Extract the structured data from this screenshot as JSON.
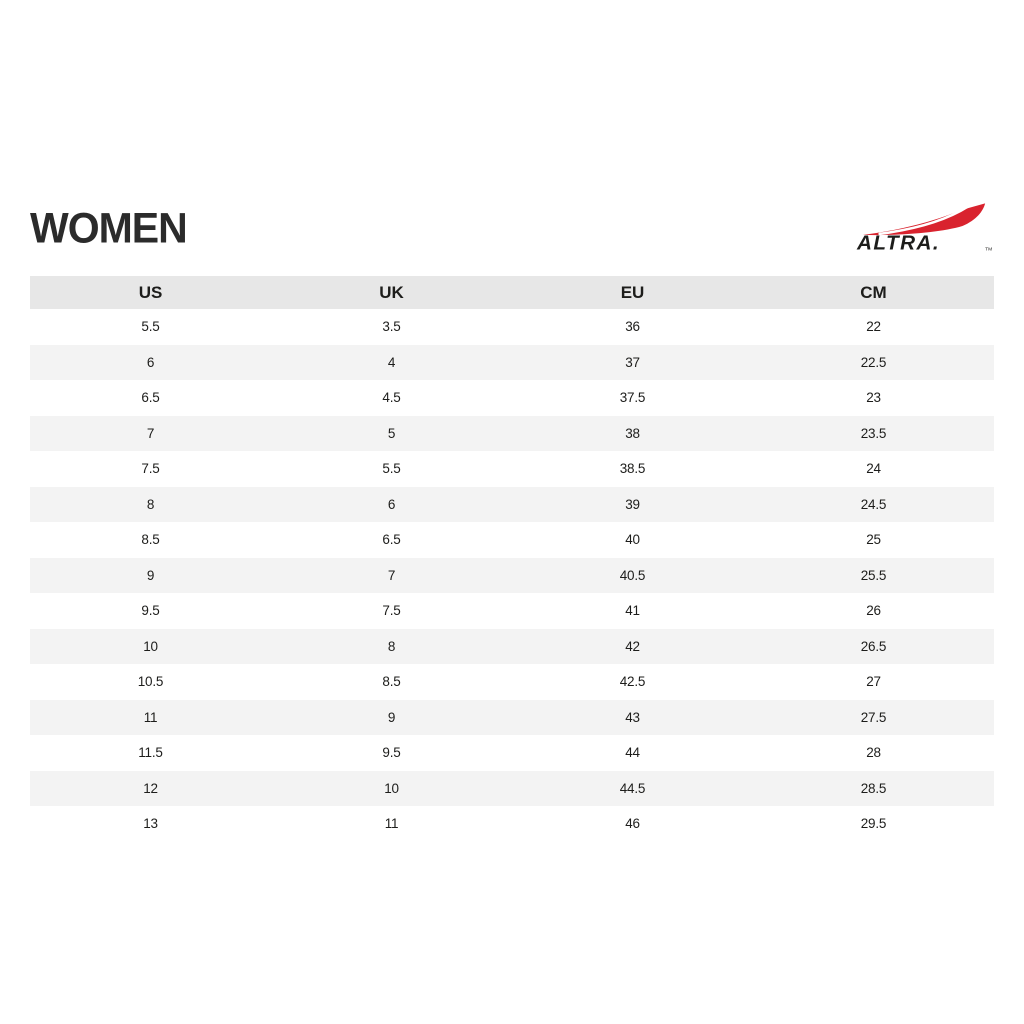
{
  "page": {
    "title": "WOMEN"
  },
  "brand": {
    "name": "ALTRA",
    "wordmark": "ALTRA.",
    "trademark": "TM",
    "logo_red": "#d9232e",
    "logo_black": "#1d1d1b"
  },
  "chart_data": {
    "type": "table",
    "title": "WOMEN",
    "columns": [
      "US",
      "UK",
      "EU",
      "CM"
    ],
    "rows": [
      [
        "5.5",
        "3.5",
        "36",
        "22"
      ],
      [
        "6",
        "4",
        "37",
        "22.5"
      ],
      [
        "6.5",
        "4.5",
        "37.5",
        "23"
      ],
      [
        "7",
        "5",
        "38",
        "23.5"
      ],
      [
        "7.5",
        "5.5",
        "38.5",
        "24"
      ],
      [
        "8",
        "6",
        "39",
        "24.5"
      ],
      [
        "8.5",
        "6.5",
        "40",
        "25"
      ],
      [
        "9",
        "7",
        "40.5",
        "25.5"
      ],
      [
        "9.5",
        "7.5",
        "41",
        "26"
      ],
      [
        "10",
        "8",
        "42",
        "26.5"
      ],
      [
        "10.5",
        "8.5",
        "42.5",
        "27"
      ],
      [
        "11",
        "9",
        "43",
        "27.5"
      ],
      [
        "11.5",
        "9.5",
        "44",
        "28"
      ],
      [
        "12",
        "10",
        "44.5",
        "28.5"
      ],
      [
        "13",
        "11",
        "46",
        "29.5"
      ]
    ]
  },
  "colors": {
    "header_bg": "#e7e7e7",
    "row_alt_bg": "#f3f3f3",
    "text": "#1d1d1b",
    "brand_red": "#d9232e",
    "background": "#ffffff"
  }
}
